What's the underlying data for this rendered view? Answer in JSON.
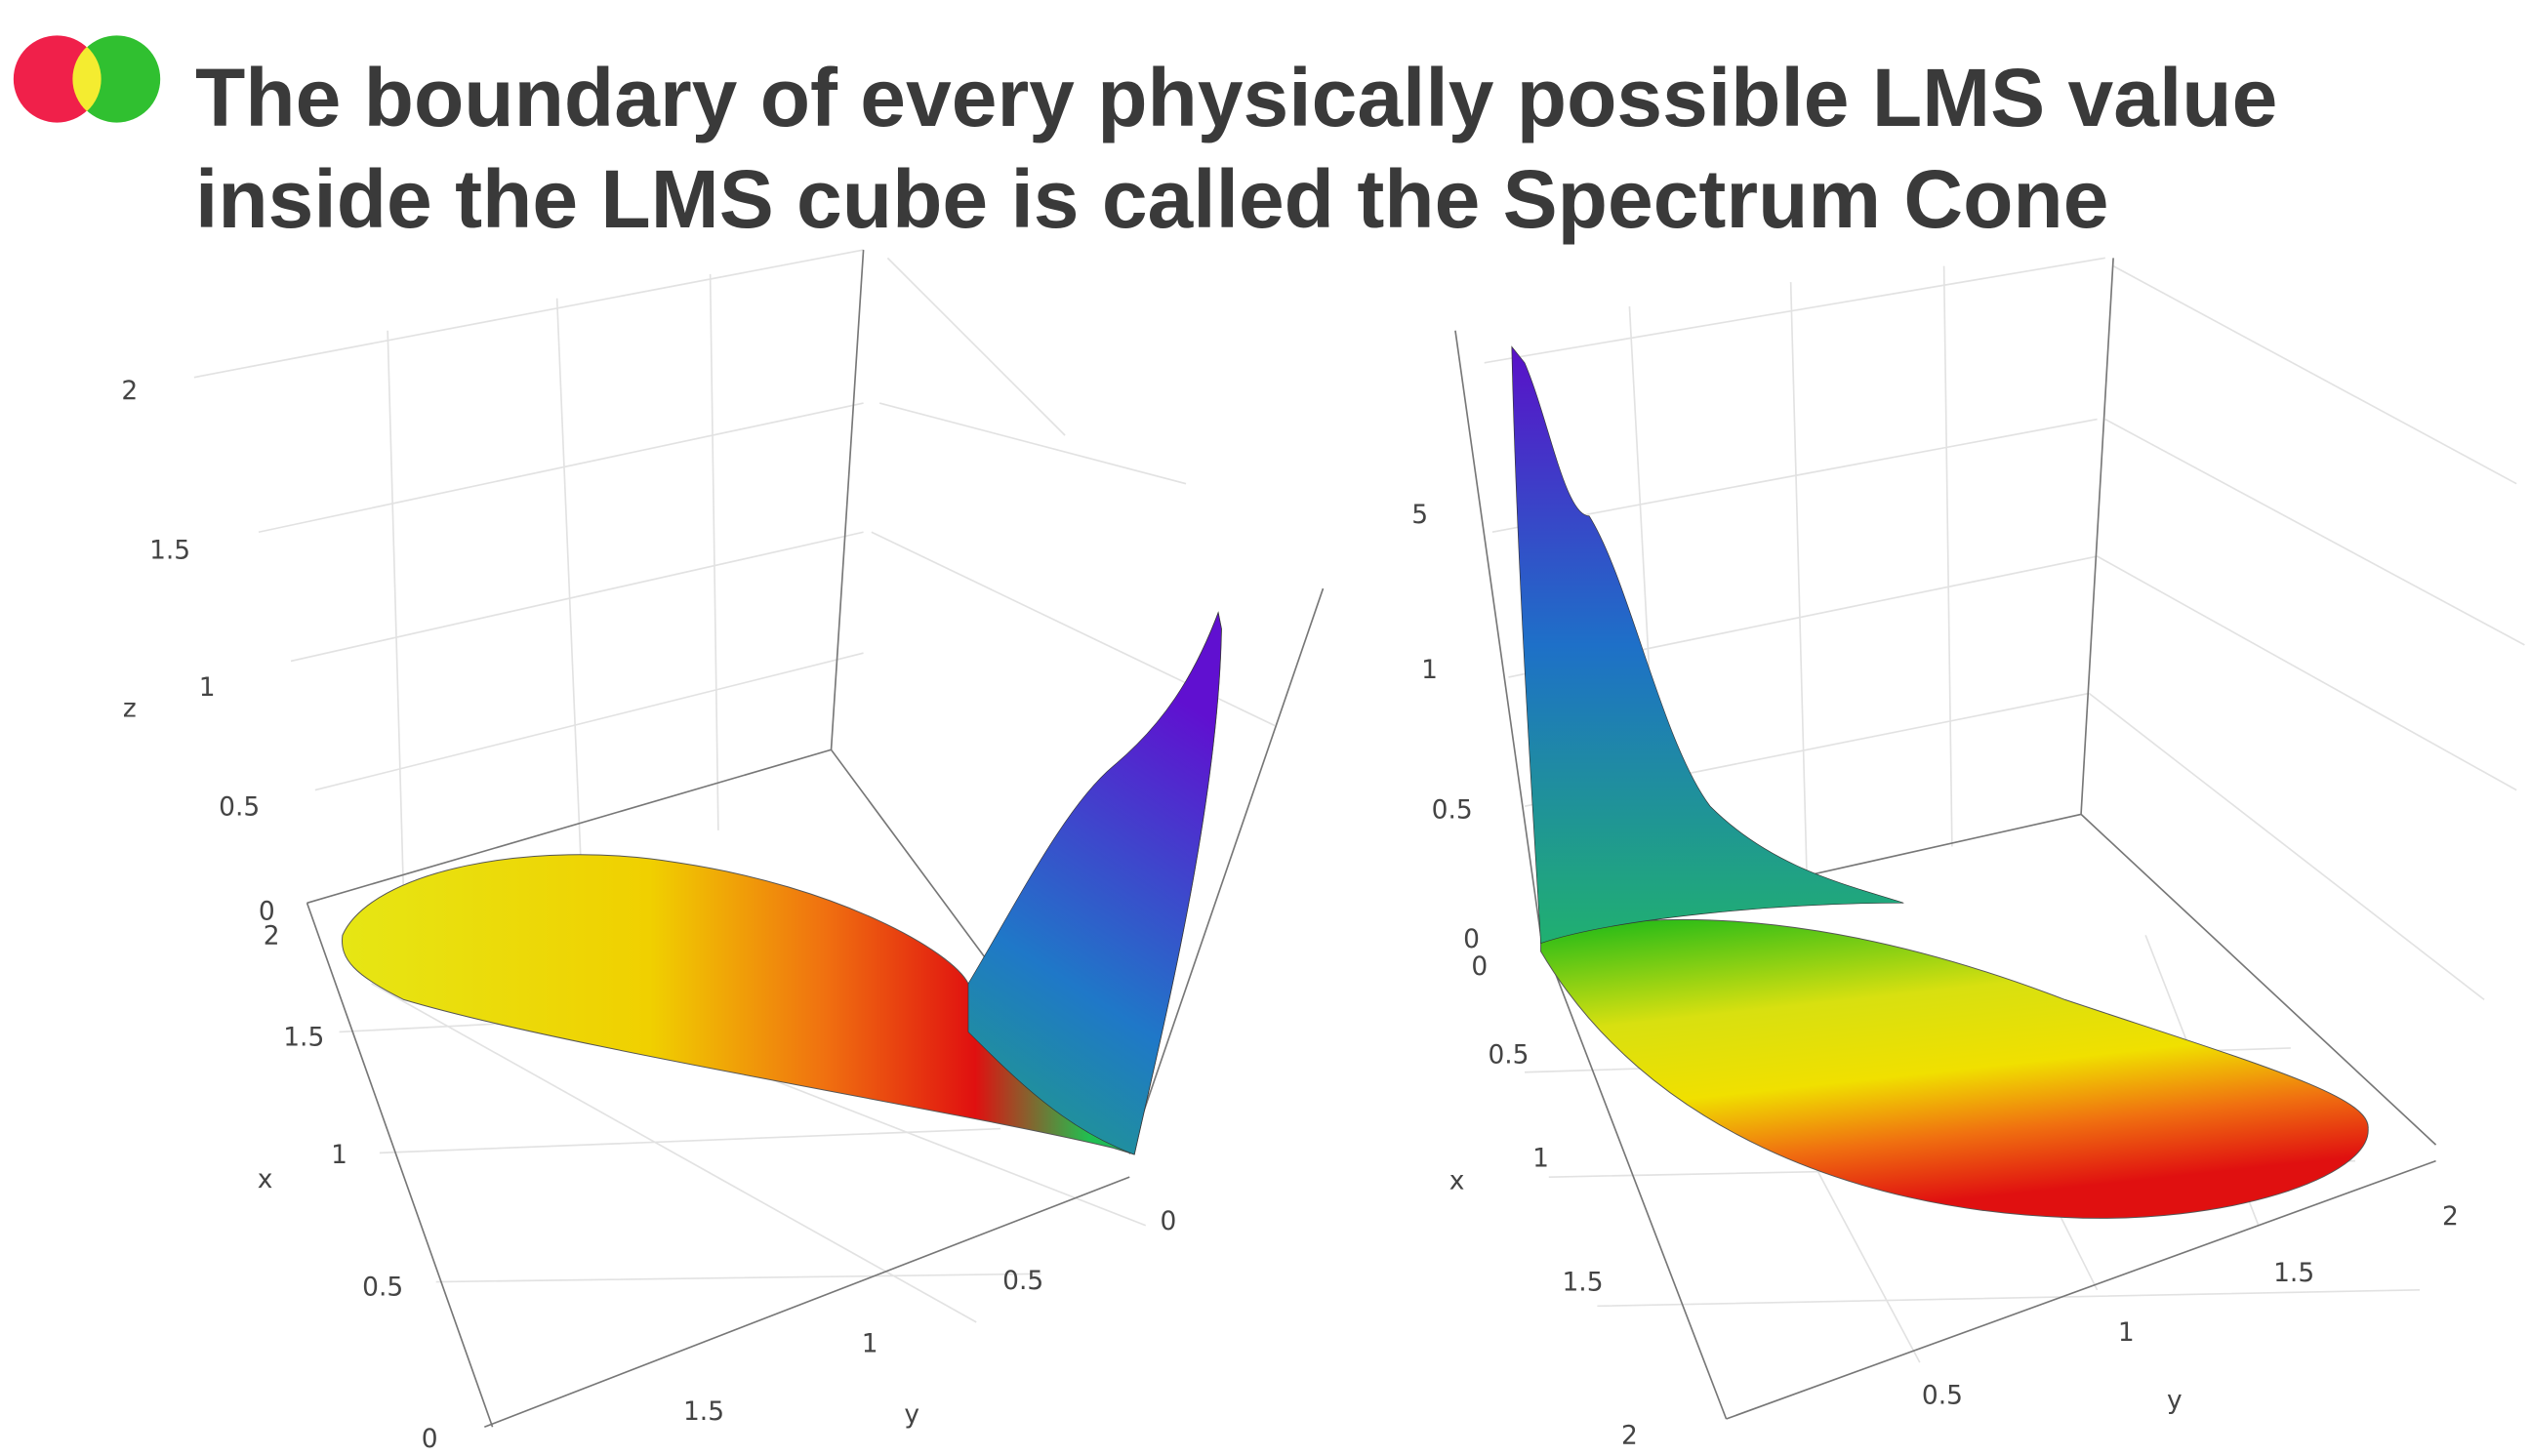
{
  "header": {
    "title": "The boundary of every physically possible LMS value inside the LMS cube is called the Spectrum Cone"
  },
  "plots": [
    {
      "z": {
        "label": "z",
        "ticks": [
          "2",
          "1.5",
          "1",
          "0.5",
          "0"
        ]
      },
      "x": {
        "label": "x",
        "ticks": [
          "2",
          "1.5",
          "1",
          "0.5",
          "0"
        ]
      },
      "y": {
        "label": "y",
        "ticks": [
          "0",
          "0.5",
          "1",
          "1.5"
        ]
      }
    },
    {
      "z": {
        "ticks": [
          "5",
          "1",
          "0.5",
          "0"
        ]
      },
      "x": {
        "label": "x",
        "ticks": [
          "0",
          "0.5",
          "1",
          "1.5",
          "2"
        ]
      },
      "y": {
        "label": "y",
        "ticks": [
          "2",
          "1.5",
          "1",
          "0.5"
        ]
      }
    }
  ]
}
